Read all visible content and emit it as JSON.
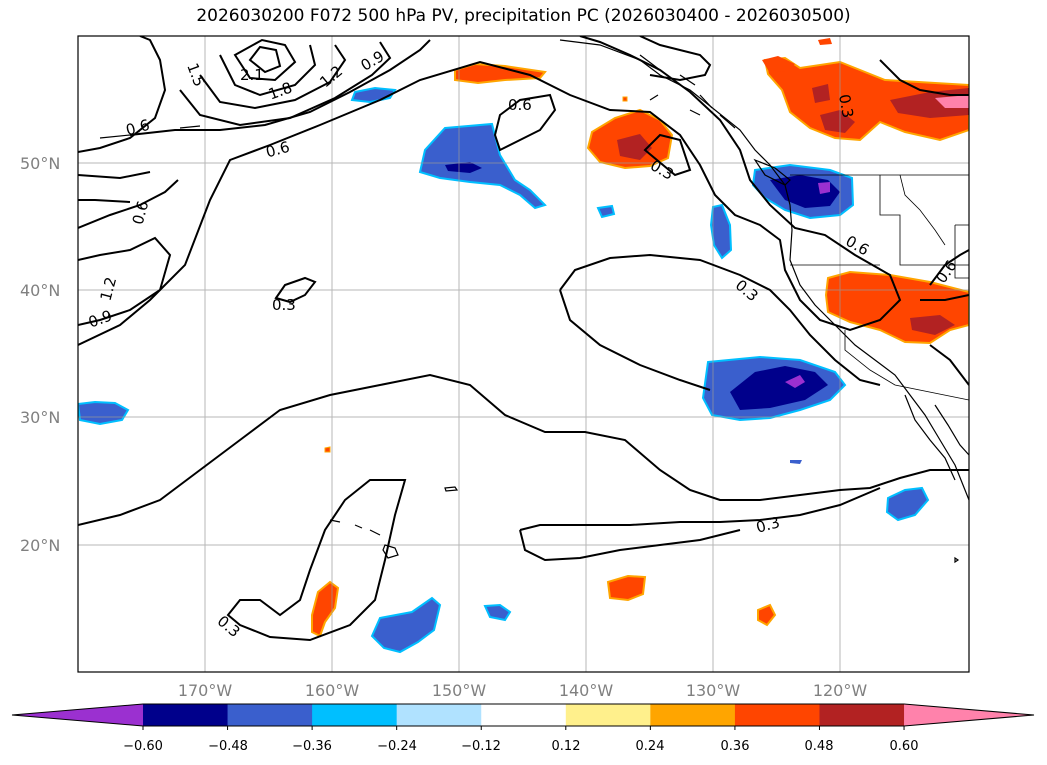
{
  "title": "2026030200 F072 500 hPa PV, precipitation PC (2026030400 - 2026030500)",
  "map": {
    "lat_labels": [
      "50°N",
      "40°N",
      "30°N",
      "20°N"
    ],
    "lon_labels": [
      "170°W",
      "160°W",
      "150°W",
      "140°W",
      "130°W",
      "120°W"
    ],
    "gridlines": true
  },
  "contour_labels": [
    "2.1",
    "1.8",
    "1.5",
    "1.2",
    "0.9",
    "0.6",
    "0.6",
    "0.6",
    "0.6",
    "0.6",
    "0.3",
    "0.3",
    "0.3",
    "0.3",
    "0.3",
    "1.2",
    "0.9",
    "0.3",
    "0.6"
  ],
  "colorbar": {
    "ticks": [
      "−0.60",
      "−0.48",
      "−0.36",
      "−0.24",
      "−0.12",
      "0.12",
      "0.24",
      "0.36",
      "0.48",
      "0.60"
    ],
    "colors": [
      "#9b30d0",
      "#00008b",
      "#3a5fcd",
      "#00bfff",
      "#b0e2ff",
      "#ffffff",
      "#fff08c",
      "#ffa500",
      "#ff4500",
      "#b22222",
      "#ff82ab"
    ]
  },
  "colors": {
    "neg_strong": "#00008b",
    "neg_mid": "#3a5fcd",
    "neg_light": "#00bfff",
    "pos_mid": "#ff4500",
    "pos_strong": "#b22222",
    "pos_max": "#ff82ab",
    "pos_light": "#ffa500"
  }
}
